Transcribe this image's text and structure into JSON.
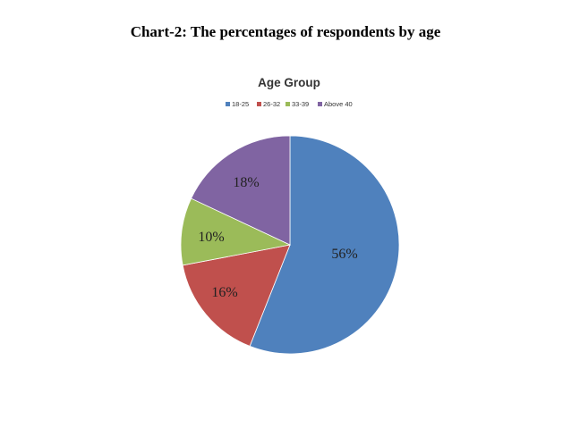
{
  "document": {
    "heading": "Chart-2: The percentages of respondents by age"
  },
  "chart_data": {
    "type": "pie",
    "title": "Age Group",
    "legend_position": "top",
    "categories": [
      "18-25",
      "26-32",
      "33-39",
      "Above 40"
    ],
    "values": [
      56,
      16,
      10,
      18
    ],
    "labels": [
      "56%",
      "16%",
      "10%",
      "18%"
    ],
    "colors": [
      "#4F81BD",
      "#C0504D",
      "#9BBB59",
      "#8064A2"
    ]
  }
}
